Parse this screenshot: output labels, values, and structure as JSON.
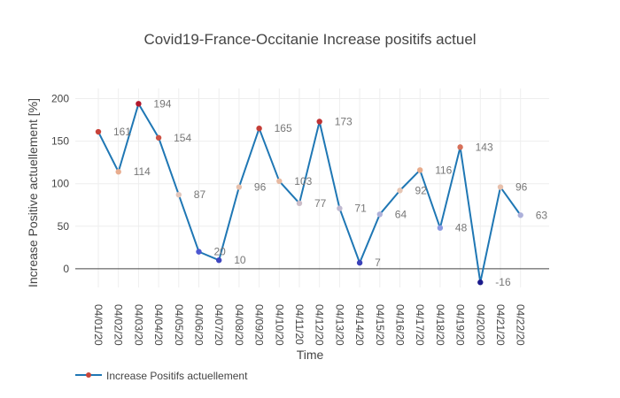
{
  "chart_data": {
    "type": "line",
    "title": "Covid19-France-Occitanie Increase positifs actuel",
    "xlabel": "Time",
    "ylabel": "Increase Positive actuellement [%]",
    "x": [
      "04/01/20",
      "04/02/20",
      "04/03/20",
      "04/04/20",
      "04/05/20",
      "04/06/20",
      "04/07/20",
      "04/08/20",
      "04/09/20",
      "04/10/20",
      "04/11/20",
      "04/12/20",
      "04/13/20",
      "04/14/20",
      "04/15/20",
      "04/16/20",
      "04/17/20",
      "04/18/20",
      "04/19/20",
      "04/20/20",
      "04/21/20",
      "04/22/20"
    ],
    "series": [
      {
        "name": "Increase Positifs actuellement",
        "values": [
          161,
          114,
          194,
          154,
          87,
          20,
          10,
          96,
          165,
          103,
          77,
          173,
          71,
          7,
          64,
          92,
          116,
          48,
          143,
          -16,
          96,
          63
        ],
        "line_color": "#1f77b4"
      }
    ],
    "ylim": [
      -22,
      212
    ],
    "yticks": [
      0,
      50,
      100,
      150,
      200
    ],
    "grid": true,
    "legend": "bottom-left",
    "marker_colorscale": [
      "#1a1a8c",
      "#4a55d0",
      "#98a8e6",
      "#e6c8b8",
      "#e9a27e",
      "#c8453a",
      "#b2182b"
    ]
  }
}
